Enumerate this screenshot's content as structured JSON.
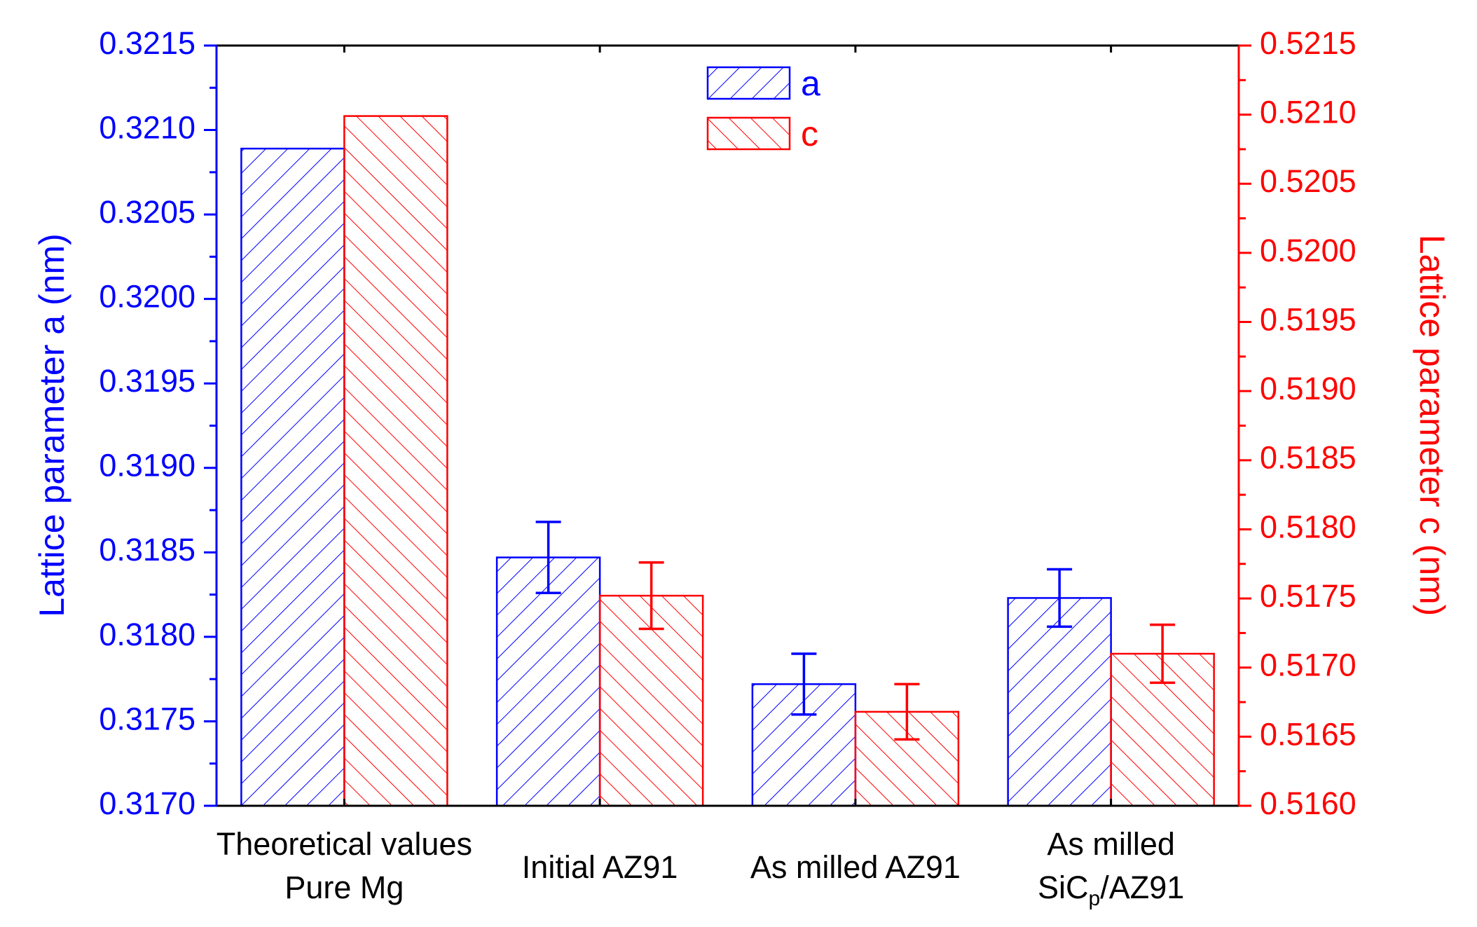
{
  "chart_data": {
    "type": "bar",
    "categories": [
      [
        "Theoretical values",
        "Pure Mg"
      ],
      [
        "Initial AZ91"
      ],
      [
        "As milled AZ91"
      ],
      [
        "As milled",
        "SiCp/AZ91"
      ]
    ],
    "series": [
      {
        "name": "a",
        "axis": "left",
        "color": "#0000ff",
        "values": [
          0.32089,
          0.31847,
          0.31772,
          0.31823
        ],
        "errors": [
          null,
          0.00021,
          0.00018,
          0.00017
        ]
      },
      {
        "name": "c",
        "axis": "right",
        "color": "#ff0000",
        "values": [
          0.52099,
          0.51752,
          0.51668,
          0.5171
        ],
        "errors": [
          null,
          0.00024,
          0.0002,
          0.00021
        ]
      }
    ],
    "ylabel_left": "Lattice parameter a (nm)",
    "ylabel_right": "Lattice parameter c (nm)",
    "ylim_left": [
      0.317,
      0.3215
    ],
    "ylim_right": [
      0.516,
      0.5215
    ],
    "yticks_left": [
      "0.3170",
      "0.3175",
      "0.3180",
      "0.3185",
      "0.3190",
      "0.3195",
      "0.3200",
      "0.3205",
      "0.3210",
      "0.3215"
    ],
    "yticks_right": [
      "0.5160",
      "0.5165",
      "0.5170",
      "0.5175",
      "0.5180",
      "0.5185",
      "0.5190",
      "0.5195",
      "0.5200",
      "0.5205",
      "0.5210",
      "0.5215"
    ],
    "legend_position": "top-center",
    "grid": false
  }
}
